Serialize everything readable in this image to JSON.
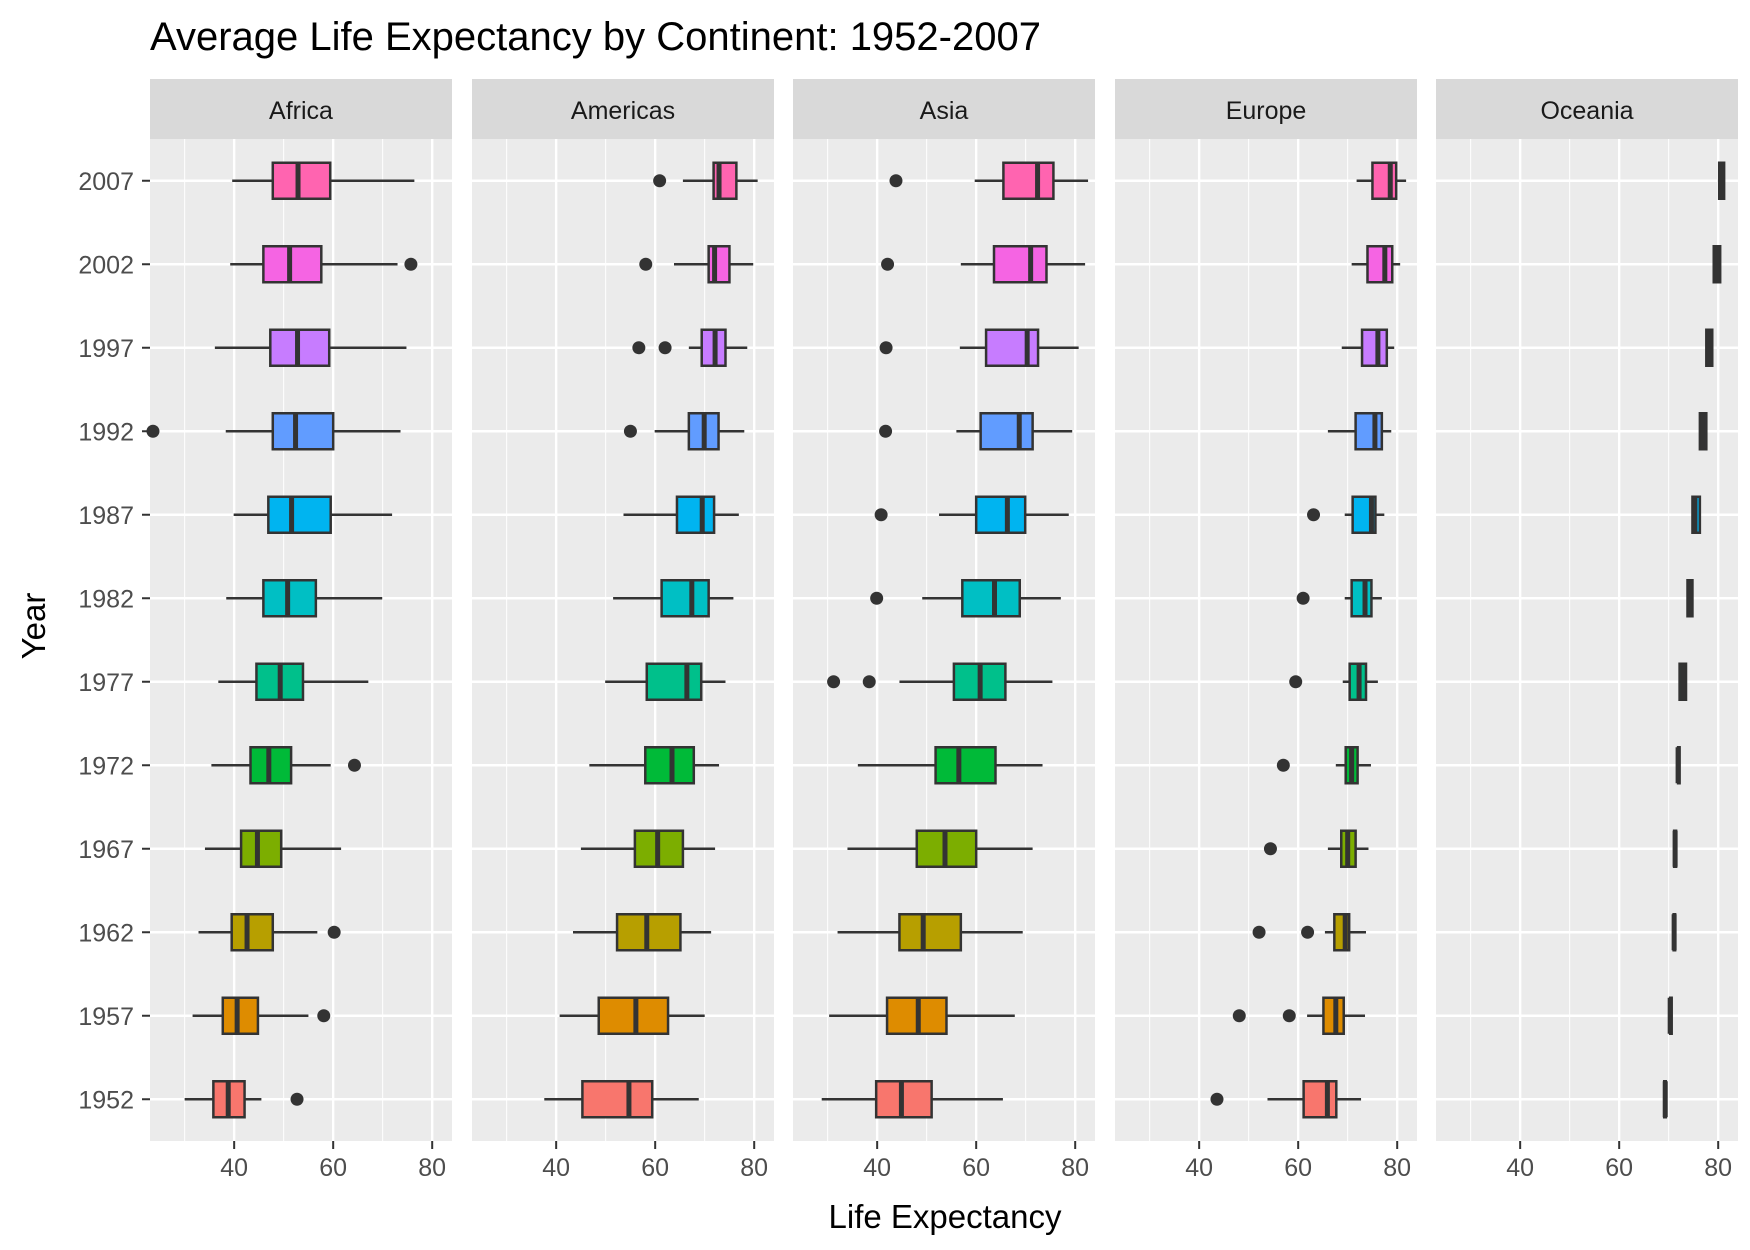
{
  "chart_data": {
    "type": "boxplot",
    "title": "Average Life Expectancy by Continent: 1952-2007",
    "xlabel": "Life Expectancy",
    "ylabel": "Year",
    "xlim": [
      23,
      84
    ],
    "x_ticks": [
      40,
      60,
      80
    ],
    "years": [
      "1952",
      "1957",
      "1962",
      "1967",
      "1972",
      "1977",
      "1982",
      "1987",
      "1992",
      "1997",
      "2002",
      "2007"
    ],
    "year_colors": [
      "#F8766D",
      "#DE8C00",
      "#B79F00",
      "#7CAE00",
      "#00BA38",
      "#00C08B",
      "#00BFC4",
      "#00B4F0",
      "#619CFF",
      "#C77CFF",
      "#F564E3",
      "#FF64B0"
    ],
    "grid": true,
    "legend": "none",
    "panels": [
      {
        "name": "Africa",
        "boxes": [
          {
            "year": "1952",
            "q1": 35.8,
            "median": 38.8,
            "q3": 42.1,
            "wlow": 30.0,
            "whigh": 45.5,
            "outliers": [
              52.7
            ]
          },
          {
            "year": "1957",
            "q1": 37.7,
            "median": 40.6,
            "q3": 44.8,
            "wlow": 31.6,
            "whigh": 55.0,
            "outliers": [
              58.1
            ]
          },
          {
            "year": "1962",
            "q1": 39.5,
            "median": 42.6,
            "q3": 47.8,
            "wlow": 32.8,
            "whigh": 56.8,
            "outliers": [
              60.2
            ]
          },
          {
            "year": "1967",
            "q1": 41.4,
            "median": 44.7,
            "q3": 49.5,
            "wlow": 34.1,
            "whigh": 61.6,
            "outliers": []
          },
          {
            "year": "1972",
            "q1": 43.3,
            "median": 47.0,
            "q3": 51.5,
            "wlow": 35.4,
            "whigh": 59.5,
            "outliers": [
              64.3
            ]
          },
          {
            "year": "1977",
            "q1": 44.5,
            "median": 49.3,
            "q3": 53.9,
            "wlow": 36.8,
            "whigh": 67.1,
            "outliers": []
          },
          {
            "year": "1982",
            "q1": 45.9,
            "median": 50.8,
            "q3": 56.5,
            "wlow": 38.4,
            "whigh": 69.9,
            "outliers": []
          },
          {
            "year": "1987",
            "q1": 46.9,
            "median": 51.6,
            "q3": 59.5,
            "wlow": 39.9,
            "whigh": 71.9,
            "outliers": []
          },
          {
            "year": "1992",
            "q1": 47.8,
            "median": 52.4,
            "q3": 60.0,
            "wlow": 38.3,
            "whigh": 73.6,
            "outliers": [
              23.6
            ]
          },
          {
            "year": "1997",
            "q1": 47.3,
            "median": 52.8,
            "q3": 59.2,
            "wlow": 36.1,
            "whigh": 74.8,
            "outliers": []
          },
          {
            "year": "2002",
            "q1": 45.9,
            "median": 51.2,
            "q3": 57.6,
            "wlow": 39.2,
            "whigh": 73.0,
            "outliers": [
              75.7
            ]
          },
          {
            "year": "2007",
            "q1": 47.8,
            "median": 52.9,
            "q3": 59.4,
            "wlow": 39.6,
            "whigh": 76.4,
            "outliers": []
          }
        ]
      },
      {
        "name": "Americas",
        "boxes": [
          {
            "year": "1952",
            "q1": 45.3,
            "median": 54.7,
            "q3": 59.4,
            "wlow": 37.6,
            "whigh": 68.8,
            "outliers": []
          },
          {
            "year": "1957",
            "q1": 48.6,
            "median": 56.1,
            "q3": 62.6,
            "wlow": 40.7,
            "whigh": 70.0,
            "outliers": []
          },
          {
            "year": "1962",
            "q1": 52.3,
            "median": 58.3,
            "q3": 65.1,
            "wlow": 43.4,
            "whigh": 71.3,
            "outliers": []
          },
          {
            "year": "1967",
            "q1": 55.9,
            "median": 60.5,
            "q3": 65.6,
            "wlow": 45.0,
            "whigh": 72.1,
            "outliers": []
          },
          {
            "year": "1972",
            "q1": 58.0,
            "median": 63.4,
            "q3": 67.8,
            "wlow": 46.7,
            "whigh": 72.9,
            "outliers": []
          },
          {
            "year": "1977",
            "q1": 58.3,
            "median": 66.4,
            "q3": 69.3,
            "wlow": 49.9,
            "whigh": 74.2,
            "outliers": []
          },
          {
            "year": "1982",
            "q1": 61.3,
            "median": 67.4,
            "q3": 70.8,
            "wlow": 51.5,
            "whigh": 75.8,
            "outliers": []
          },
          {
            "year": "1987",
            "q1": 64.4,
            "median": 69.5,
            "q3": 71.9,
            "wlow": 53.6,
            "whigh": 76.9,
            "outliers": []
          },
          {
            "year": "1992",
            "q1": 66.8,
            "median": 69.9,
            "q3": 72.8,
            "wlow": 59.9,
            "whigh": 78.0,
            "outliers": [
              55.0
            ]
          },
          {
            "year": "1997",
            "q1": 69.4,
            "median": 72.1,
            "q3": 74.2,
            "wlow": 66.8,
            "whigh": 78.6,
            "outliers": [
              56.7,
              62.0
            ]
          },
          {
            "year": "2002",
            "q1": 70.8,
            "median": 72.0,
            "q3": 75.0,
            "wlow": 63.8,
            "whigh": 79.8,
            "outliers": [
              58.1
            ]
          },
          {
            "year": "2007",
            "q1": 71.8,
            "median": 72.9,
            "q3": 76.4,
            "wlow": 65.6,
            "whigh": 80.7,
            "outliers": [
              60.9
            ]
          }
        ]
      },
      {
        "name": "Asia",
        "boxes": [
          {
            "year": "1952",
            "q1": 39.8,
            "median": 44.9,
            "q3": 51.0,
            "wlow": 28.8,
            "whigh": 65.4,
            "outliers": []
          },
          {
            "year": "1957",
            "q1": 42.0,
            "median": 48.3,
            "q3": 54.0,
            "wlow": 30.3,
            "whigh": 67.8,
            "outliers": []
          },
          {
            "year": "1962",
            "q1": 44.5,
            "median": 49.3,
            "q3": 56.9,
            "wlow": 32.0,
            "whigh": 69.4,
            "outliers": []
          },
          {
            "year": "1967",
            "q1": 48.0,
            "median": 53.7,
            "q3": 60.0,
            "wlow": 34.0,
            "whigh": 71.4,
            "outliers": []
          },
          {
            "year": "1972",
            "q1": 51.8,
            "median": 56.5,
            "q3": 63.9,
            "wlow": 36.1,
            "whigh": 73.4,
            "outliers": []
          },
          {
            "year": "1977",
            "q1": 55.5,
            "median": 60.8,
            "q3": 65.9,
            "wlow": 44.5,
            "whigh": 75.4,
            "outliers": [
              31.2,
              38.4
            ]
          },
          {
            "year": "1982",
            "q1": 57.2,
            "median": 63.7,
            "q3": 68.8,
            "wlow": 49.1,
            "whigh": 77.1,
            "outliers": [
              39.9
            ]
          },
          {
            "year": "1987",
            "q1": 60.0,
            "median": 66.3,
            "q3": 69.9,
            "wlow": 52.5,
            "whigh": 78.7,
            "outliers": [
              40.8
            ]
          },
          {
            "year": "1992",
            "q1": 60.9,
            "median": 68.7,
            "q3": 71.4,
            "wlow": 56.0,
            "whigh": 79.4,
            "outliers": [
              41.7
            ]
          },
          {
            "year": "1997",
            "q1": 62.0,
            "median": 70.3,
            "q3": 72.5,
            "wlow": 56.7,
            "whigh": 80.7,
            "outliers": [
              41.8
            ]
          },
          {
            "year": "2002",
            "q1": 63.6,
            "median": 71.0,
            "q3": 74.2,
            "wlow": 56.9,
            "whigh": 82.0,
            "outliers": [
              42.1
            ]
          },
          {
            "year": "2007",
            "q1": 65.5,
            "median": 72.4,
            "q3": 75.6,
            "wlow": 59.7,
            "whigh": 82.6,
            "outliers": [
              43.8
            ]
          }
        ]
      },
      {
        "name": "Europe",
        "boxes": [
          {
            "year": "1952",
            "q1": 61.1,
            "median": 65.9,
            "q3": 67.7,
            "wlow": 53.8,
            "whigh": 72.7,
            "outliers": [
              43.6
            ]
          },
          {
            "year": "1957",
            "q1": 65.1,
            "median": 67.6,
            "q3": 69.2,
            "wlow": 61.8,
            "whigh": 73.5,
            "outliers": [
              48.1,
              58.2
            ]
          },
          {
            "year": "1962",
            "q1": 67.3,
            "median": 69.5,
            "q3": 70.3,
            "wlow": 65.4,
            "whigh": 73.7,
            "outliers": [
              52.1,
              61.9
            ]
          },
          {
            "year": "1967",
            "q1": 68.7,
            "median": 70.0,
            "q3": 71.6,
            "wlow": 66.0,
            "whigh": 74.2,
            "outliers": [
              54.4
            ]
          },
          {
            "year": "1972",
            "q1": 69.6,
            "median": 70.8,
            "q3": 72.0,
            "wlow": 67.6,
            "whigh": 74.7,
            "outliers": [
              57.0
            ]
          },
          {
            "year": "1977",
            "q1": 70.4,
            "median": 72.3,
            "q3": 73.7,
            "wlow": 69.0,
            "whigh": 76.1,
            "outliers": [
              59.5
            ]
          },
          {
            "year": "1982",
            "q1": 70.8,
            "median": 73.5,
            "q3": 74.8,
            "wlow": 69.4,
            "whigh": 76.9,
            "outliers": [
              61.0
            ]
          },
          {
            "year": "1987",
            "q1": 71.0,
            "median": 74.8,
            "q3": 75.6,
            "wlow": 69.4,
            "whigh": 77.4,
            "outliers": [
              63.1
            ]
          },
          {
            "year": "1992",
            "q1": 71.6,
            "median": 75.5,
            "q3": 76.9,
            "wlow": 66.0,
            "whigh": 78.8,
            "outliers": []
          },
          {
            "year": "1997",
            "q1": 72.9,
            "median": 76.1,
            "q3": 77.9,
            "wlow": 68.8,
            "whigh": 79.4,
            "outliers": []
          },
          {
            "year": "2002",
            "q1": 74.0,
            "median": 77.5,
            "q3": 79.0,
            "wlow": 70.8,
            "whigh": 80.6,
            "outliers": []
          },
          {
            "year": "2007",
            "q1": 75.0,
            "median": 78.6,
            "q3": 79.8,
            "wlow": 71.8,
            "whigh": 81.8,
            "outliers": []
          }
        ]
      },
      {
        "name": "Oceania",
        "boxes": [
          {
            "year": "1952",
            "q1": 69.1,
            "median": 69.3,
            "q3": 69.4,
            "wlow": 69.1,
            "whigh": 69.4,
            "outliers": []
          },
          {
            "year": "1957",
            "q1": 70.3,
            "median": 70.3,
            "q3": 70.3,
            "wlow": 70.3,
            "whigh": 70.3,
            "outliers": []
          },
          {
            "year": "1962",
            "q1": 71.0,
            "median": 71.1,
            "q3": 71.2,
            "wlow": 71.0,
            "whigh": 71.2,
            "outliers": []
          },
          {
            "year": "1967",
            "q1": 71.1,
            "median": 71.3,
            "q3": 71.5,
            "wlow": 71.1,
            "whigh": 71.5,
            "outliers": []
          },
          {
            "year": "1972",
            "q1": 71.9,
            "median": 71.9,
            "q3": 72.0,
            "wlow": 71.9,
            "whigh": 72.0,
            "outliers": []
          },
          {
            "year": "1977",
            "q1": 72.2,
            "median": 72.9,
            "q3": 73.5,
            "wlow": 72.2,
            "whigh": 73.5,
            "outliers": []
          },
          {
            "year": "1982",
            "q1": 73.8,
            "median": 74.3,
            "q3": 74.8,
            "wlow": 73.8,
            "whigh": 74.8,
            "outliers": []
          },
          {
            "year": "1987",
            "q1": 74.8,
            "median": 75.3,
            "q3": 76.3,
            "wlow": 74.8,
            "whigh": 76.3,
            "outliers": []
          },
          {
            "year": "1992",
            "q1": 76.3,
            "median": 76.9,
            "q3": 77.6,
            "wlow": 76.3,
            "whigh": 77.6,
            "outliers": []
          },
          {
            "year": "1997",
            "q1": 77.6,
            "median": 78.2,
            "q3": 78.8,
            "wlow": 77.6,
            "whigh": 78.8,
            "outliers": []
          },
          {
            "year": "2002",
            "q1": 79.1,
            "median": 79.7,
            "q3": 80.4,
            "wlow": 79.1,
            "whigh": 80.4,
            "outliers": []
          },
          {
            "year": "2007",
            "q1": 80.2,
            "median": 80.7,
            "q3": 81.2,
            "wlow": 80.2,
            "whigh": 81.2,
            "outliers": []
          }
        ]
      }
    ]
  }
}
